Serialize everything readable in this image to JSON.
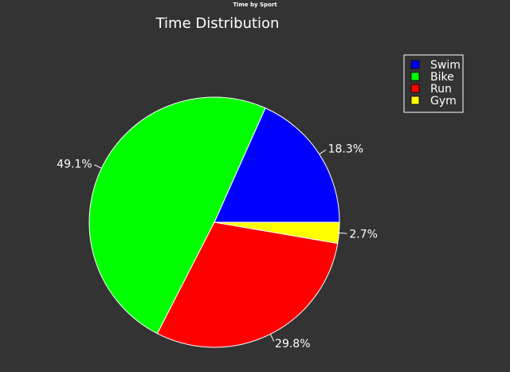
{
  "window": {
    "title": "Time by Sport"
  },
  "chart_data": {
    "type": "pie",
    "title": "Time Distribution",
    "categories": [
      "Swim",
      "Bike",
      "Run",
      "Gym"
    ],
    "values": [
      18.3,
      49.1,
      29.8,
      2.7
    ],
    "labels": [
      "18.3%",
      "49.1%",
      "29.8%",
      "2.7%"
    ],
    "colors": [
      "#0000ff",
      "#00ff00",
      "#ff0000",
      "#ffff00"
    ],
    "start_angle_deg": 0,
    "direction": "counterclockwise",
    "legend_position": "top-right"
  },
  "theme": {
    "background": "#333333",
    "text": "#ffffff",
    "wedge_edge": "#ffffff"
  }
}
